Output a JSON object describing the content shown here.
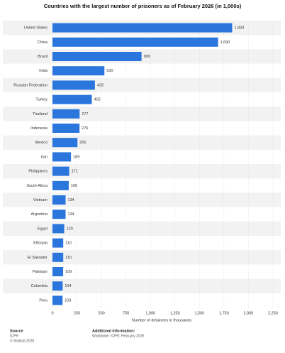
{
  "chart_data": {
    "type": "hbar",
    "title": "Countries with the largest number of prisoners as of February 2026 (in 1,000s)",
    "x_label": "Number of detainees in thousands",
    "categories": [
      "United States",
      "China",
      "Brazil",
      "India",
      "Russian Federation",
      "Turkey",
      "Thailand",
      "Indonesia",
      "Mexico",
      "Iran",
      "Philippines",
      "South Africa",
      "Vietnam",
      "Argentina",
      "Egypt",
      "Ethiopia",
      "El Salvador",
      "Pakistan",
      "Colombia",
      "Peru"
    ],
    "values": [
      1834,
      1690,
      909,
      530,
      433,
      402,
      277,
      276,
      255,
      189,
      171,
      166,
      134,
      134,
      120,
      110,
      110,
      109,
      104,
      103
    ],
    "value_labels": [
      "1,834",
      "1,690",
      "909",
      "530",
      "433",
      "402",
      "277",
      "276",
      "255",
      "189",
      "171",
      "166",
      "134",
      "134",
      "120",
      "110",
      "110",
      "109",
      "104",
      "103"
    ],
    "color": "#2a76dd",
    "xlim": [
      0,
      2250
    ],
    "xticks": [
      0,
      250,
      500,
      750,
      {
        "value": 1000,
        "label": "1,000"
      },
      {
        "value": 1250,
        "label": "1,250"
      },
      {
        "value": 1500,
        "label": "1,500"
      },
      {
        "value": 1750,
        "label": "1,750"
      },
      {
        "value": 2000,
        "label": "2,000"
      },
      {
        "value": 2250,
        "label": "2,250"
      }
    ],
    "grid": true
  },
  "footer": {
    "source_heading": "Source",
    "source": "ICPR",
    "copyright": "© Statista 2026",
    "info_heading": "Additional Information:",
    "info": "Worldwide; ICPR; February 2026"
  }
}
